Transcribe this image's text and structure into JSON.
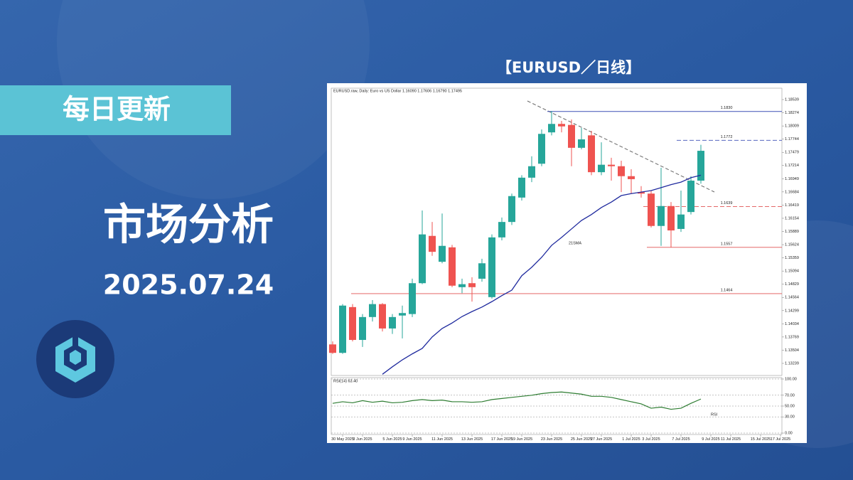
{
  "header": {
    "tag": "每日更新",
    "title": "市场分析",
    "date": "2025.07.24"
  },
  "chart_data": [
    {
      "type": "candlestick",
      "title": "【EURUSD／日线】",
      "subtitle": "EURUSD.raw, Daily: Euro vs US Dollar 1.16090 1.17606 1.16790 1.17495",
      "categories": [
        null,
        "30 May 2025",
        null,
        "3 Jun 2025",
        null,
        null,
        "5 Jun 2025",
        null,
        "9 Jun 2025",
        null,
        null,
        "11 Jun 2025",
        null,
        null,
        "13 Jun 2025",
        null,
        null,
        "17 Jun 2025",
        null,
        "19 Jun 2025",
        null,
        null,
        "23 Jun 2025",
        null,
        null,
        "25 Jun 2025",
        null,
        "27 Jun 2025",
        null,
        null,
        "1 Jul 2025",
        null,
        "3 Jul 2025",
        null,
        null,
        "7 Jul 2025",
        null,
        null,
        "9 Jul 2025",
        null,
        "11 Jul 2025",
        null,
        null,
        "15 Jul 2025",
        null,
        "17 Jul 2025"
      ],
      "open": [
        1.1362,
        1.1345,
        1.1437,
        1.1371,
        1.1417,
        1.1443,
        1.1394,
        1.142,
        1.1423,
        1.1485,
        1.158,
        1.1528,
        1.1557,
        1.1477,
        1.1485,
        1.1494,
        1.1457,
        1.1577,
        1.1608,
        1.1657,
        1.1697,
        1.1725,
        1.1788,
        1.1805,
        1.1803,
        1.1757,
        1.1782,
        1.1708,
        1.1723,
        1.172,
        1.17,
        1.1668,
        1.1665,
        1.16,
        1.164,
        1.1594,
        1.1628,
        1.1691,
        null,
        null,
        null,
        null,
        null,
        null,
        null,
        null
      ],
      "high": [
        1.1368,
        1.1443,
        1.1443,
        1.1423,
        1.1451,
        1.1445,
        1.1423,
        1.144,
        1.1494,
        1.1631,
        1.1608,
        1.1625,
        1.1562,
        1.1494,
        1.1497,
        1.1534,
        1.1583,
        1.1617,
        1.1665,
        1.1702,
        1.174,
        1.1794,
        1.1831,
        1.1811,
        1.1814,
        1.1797,
        1.1791,
        1.1768,
        1.1737,
        1.1731,
        1.1714,
        1.168,
        1.1671,
        1.1717,
        1.1648,
        1.1671,
        1.17,
        1.1763,
        null,
        null,
        null,
        null,
        null,
        null,
        null,
        null
      ],
      "low": [
        1.1343,
        1.1343,
        1.1368,
        1.1357,
        1.1408,
        1.1388,
        1.1383,
        1.1374,
        1.1417,
        1.1483,
        1.154,
        1.1525,
        1.1477,
        1.1465,
        1.1448,
        1.1488,
        1.1454,
        1.1571,
        1.1602,
        1.1651,
        1.1688,
        1.172,
        1.1782,
        1.1788,
        1.172,
        1.1754,
        1.1702,
        1.1702,
        1.1691,
        1.1668,
        1.1665,
        1.1657,
        1.1597,
        1.156,
        1.1557,
        1.1588,
        1.1623,
        1.1685,
        null,
        null,
        null,
        null,
        null,
        null,
        null,
        null
      ],
      "close": [
        1.1345,
        1.144,
        1.1371,
        1.1417,
        1.1443,
        1.1394,
        1.1417,
        1.1425,
        1.1485,
        1.1583,
        1.1548,
        1.156,
        1.148,
        1.1483,
        1.1477,
        1.1525,
        1.1577,
        1.1608,
        1.166,
        1.1697,
        1.172,
        1.1785,
        1.1805,
        1.18,
        1.1757,
        1.1774,
        1.1708,
        1.1723,
        1.172,
        1.17,
        1.1694,
        1.1665,
        1.16,
        1.164,
        1.1591,
        1.1623,
        1.1691,
        1.1751,
        null,
        null,
        null,
        null,
        null,
        null,
        null,
        null
      ],
      "up_color": "#26a69a",
      "down_color": "#ef5350",
      "series": [
        {
          "name": "21SMA",
          "color": "#1f2a9e",
          "values": [
            null,
            null,
            null,
            null,
            null,
            1.1302,
            1.1317,
            1.1331,
            1.1343,
            1.1354,
            1.1377,
            1.1394,
            1.1405,
            1.1418,
            1.1428,
            1.1437,
            1.1448,
            1.146,
            1.1471,
            1.15,
            1.1517,
            1.1537,
            1.1561,
            1.1577,
            1.1594,
            1.1611,
            1.1623,
            1.1637,
            1.1648,
            1.1661,
            1.1665,
            1.1668,
            1.1671,
            1.1677,
            1.1683,
            1.1688,
            1.1697,
            1.1702,
            null,
            null,
            null,
            null,
            null,
            null,
            null,
            null
          ]
        }
      ],
      "levels": [
        {
          "value": 1.183,
          "label": "1.1830",
          "color": "#3f51b5",
          "dashed": false
        },
        {
          "value": 1.1772,
          "label": "1.1772",
          "color": "#3f51b5",
          "dashed": true
        },
        {
          "value": 1.1639,
          "label": "1.1639",
          "color": "#e05252",
          "dashed": true
        },
        {
          "value": 1.1557,
          "label": "1.1557",
          "color": "#e05252",
          "dashed": false
        },
        {
          "value": 1.1464,
          "label": "1.1464",
          "color": "#e05252",
          "dashed": false
        }
      ],
      "ylim": [
        1.12996,
        1.18768
      ],
      "yticks": [
        1.13239,
        1.13504,
        1.13769,
        1.14034,
        1.14299,
        1.14564,
        1.14829,
        1.15094,
        1.15359,
        1.15624,
        1.15889,
        1.16154,
        1.16419,
        1.16684,
        1.16949,
        1.17214,
        1.17479,
        1.17744,
        1.18009,
        1.18274,
        1.18539
      ]
    },
    {
      "type": "line",
      "title": "RSI(14) 63.40",
      "series": [
        {
          "name": "RSI",
          "color": "#2e7d32",
          "values": [
            55,
            58,
            56,
            60,
            57,
            59,
            56,
            57,
            60,
            62,
            60,
            61,
            58,
            58,
            57,
            58,
            62,
            64,
            66,
            68,
            70,
            73,
            75,
            76,
            74,
            72,
            68,
            68,
            66,
            62,
            58,
            54,
            46,
            48,
            44,
            46,
            55,
            63,
            null,
            null,
            null,
            null,
            null,
            null,
            null,
            null
          ]
        }
      ],
      "ylim": [
        0,
        100
      ],
      "yticks": [
        {
          "value": 0,
          "label": "0.00"
        },
        {
          "value": 30,
          "label": "30.00"
        },
        {
          "value": 50,
          "label": "50.00"
        },
        {
          "value": 70,
          "label": "70.00"
        },
        {
          "value": 100,
          "label": "100.00"
        }
      ]
    }
  ]
}
